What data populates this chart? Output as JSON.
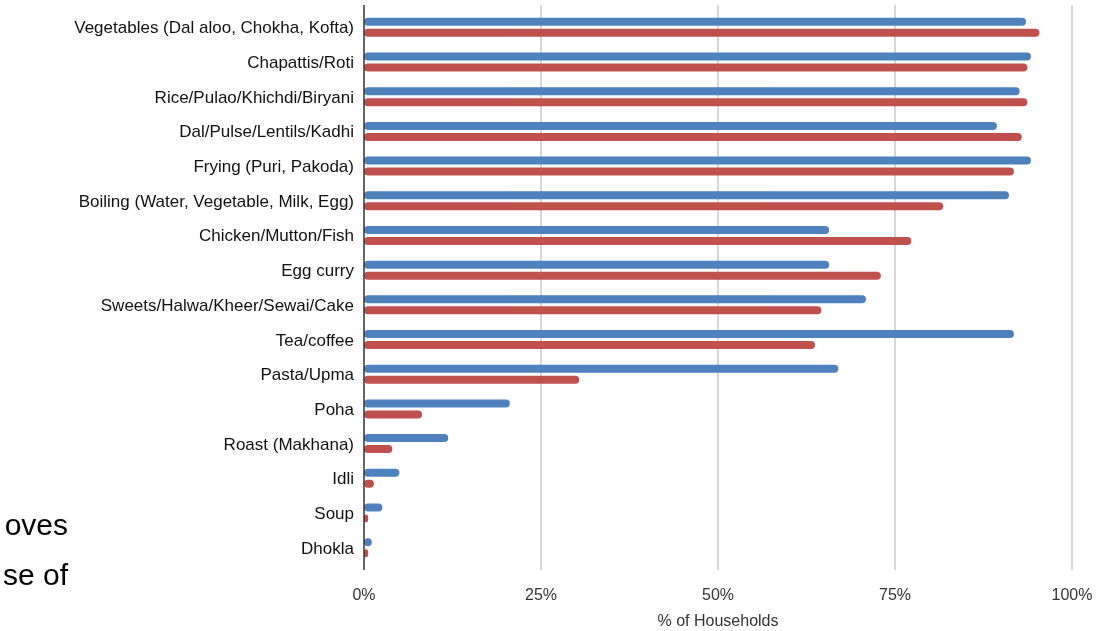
{
  "chart_data": {
    "type": "bar",
    "orientation": "horizontal",
    "xlabel": "% of Households",
    "categories": [
      "Vegetables (Dal aloo, Chokha, Kofta)",
      "Chapattis/Roti",
      "Rice/Pulao/Khichdi/Biryani",
      "Dal/Pulse/Lentils/Kadhi",
      "Frying (Puri, Pakoda)",
      "Boiling (Water, Vegetable, Milk, Egg)",
      "Chicken/Mutton/Fish",
      "Egg curry",
      "Sweets/Halwa/Kheer/Sewai/Cake",
      "Tea/coffee",
      "Pasta/Upma",
      "Poha",
      "Roast (Makhana)",
      "Idli",
      "Soup",
      "Dhokla"
    ],
    "series": [
      {
        "color": "#4f81bd",
        "values": [
          93.5,
          94.2,
          92.6,
          89.4,
          94.2,
          91.1,
          65.7,
          65.7,
          70.9,
          91.8,
          67,
          20.6,
          11.9,
          5,
          2.6,
          1.1
        ]
      },
      {
        "color": "#c0504d",
        "values": [
          95.4,
          93.7,
          93.7,
          92.9,
          91.8,
          81.8,
          77.3,
          73,
          64.6,
          63.7,
          30.4,
          8.2,
          4,
          1.4,
          0.6,
          0.6
        ]
      }
    ],
    "xlim": [
      0,
      100
    ],
    "xticks": [
      {
        "value": 0,
        "label": "0%"
      },
      {
        "value": 25,
        "label": "25%"
      },
      {
        "value": 50,
        "label": "50%"
      },
      {
        "value": 75,
        "label": "75%"
      },
      {
        "value": 100,
        "label": "100%"
      }
    ],
    "grid": "x",
    "annotations": [
      "oves",
      "se of"
    ]
  }
}
